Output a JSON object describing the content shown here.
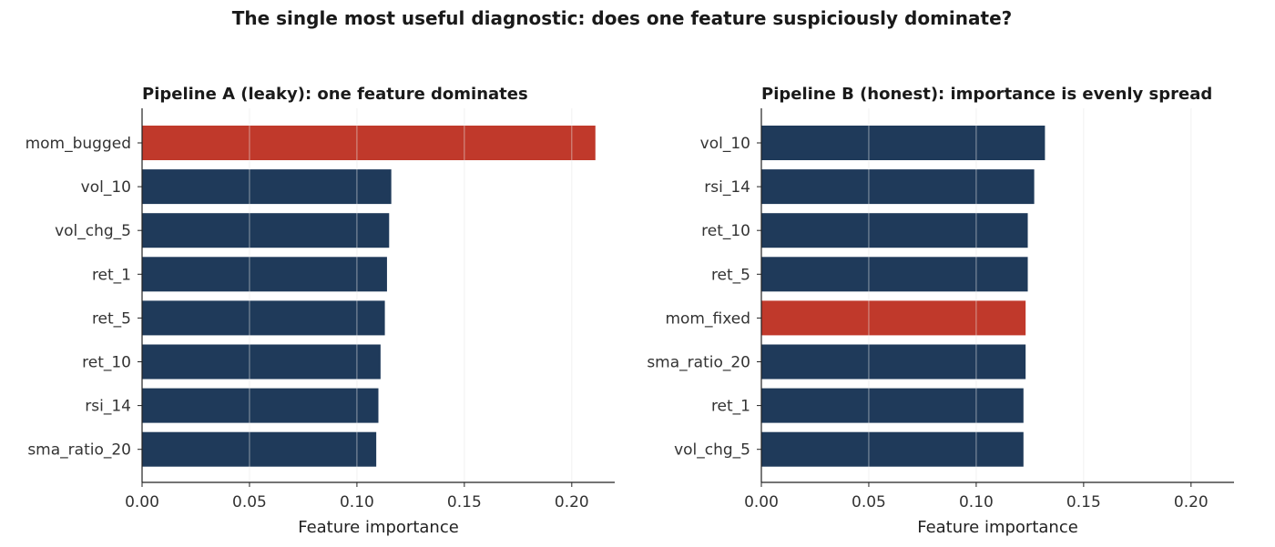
{
  "suptitle": "The single most useful diagnostic: does one feature suspiciously dominate?",
  "colors": {
    "normal": "#1f3a5a",
    "highlight": "#c0392b",
    "grid": "#e6e6e6"
  },
  "chart_data": [
    {
      "type": "bar",
      "orientation": "horizontal",
      "title": "Pipeline A (leaky): one feature dominates",
      "xlabel": "Feature importance",
      "ylabel": "",
      "xlim": [
        0,
        0.22
      ],
      "xticks": [
        "0.00",
        "0.05",
        "0.10",
        "0.15",
        "0.20"
      ],
      "grid": "x",
      "categories": [
        "mom_bugged",
        "vol_10",
        "vol_chg_5",
        "ret_1",
        "ret_5",
        "ret_10",
        "rsi_14",
        "sma_ratio_20"
      ],
      "values": [
        0.211,
        0.116,
        0.115,
        0.114,
        0.113,
        0.111,
        0.11,
        0.109
      ],
      "highlight": [
        "mom_bugged"
      ]
    },
    {
      "type": "bar",
      "orientation": "horizontal",
      "title": "Pipeline B (honest): importance is evenly spread",
      "xlabel": "Feature importance",
      "ylabel": "",
      "xlim": [
        0,
        0.22
      ],
      "xticks": [
        "0.00",
        "0.05",
        "0.10",
        "0.15",
        "0.20"
      ],
      "grid": "x",
      "categories": [
        "vol_10",
        "rsi_14",
        "ret_10",
        "ret_5",
        "mom_fixed",
        "sma_ratio_20",
        "ret_1",
        "vol_chg_5"
      ],
      "values": [
        0.132,
        0.127,
        0.124,
        0.124,
        0.123,
        0.123,
        0.122,
        0.122
      ],
      "highlight": [
        "mom_fixed"
      ]
    }
  ]
}
